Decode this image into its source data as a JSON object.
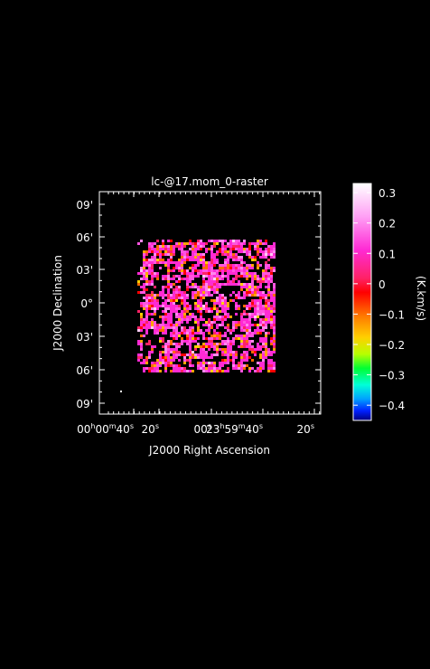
{
  "chart_data": {
    "type": "heatmap",
    "title": "lc-@17.mom_0-raster",
    "xlabel": "J2000 Right Ascension",
    "ylabel": "J2000 Declination",
    "x_ticks": [
      {
        "parts": [
          "00",
          "h",
          "00",
          "m",
          "40",
          "s"
        ]
      },
      {
        "parts": [
          "20",
          "s"
        ]
      },
      {
        "parts": [
          "00",
          "s"
        ]
      },
      {
        "parts": [
          "23",
          "h",
          "59",
          "m",
          "40",
          "s"
        ]
      },
      {
        "parts": [
          "20",
          "s"
        ]
      }
    ],
    "y_ticks": [
      "09'",
      "06'",
      "03'",
      "0°",
      "03'",
      "06'",
      "09'"
    ],
    "colorbar": {
      "label": "(K.km/s)",
      "range": [
        -0.45,
        0.33
      ],
      "ticks": [
        "0.3",
        "0.2",
        "0.1",
        "0",
        "−0.1",
        "−0.2",
        "−0.3",
        "−0.4"
      ],
      "tick_values": [
        0.3,
        0.2,
        0.1,
        0,
        -0.1,
        -0.2,
        -0.3,
        -0.4
      ]
    },
    "grid": false
  }
}
